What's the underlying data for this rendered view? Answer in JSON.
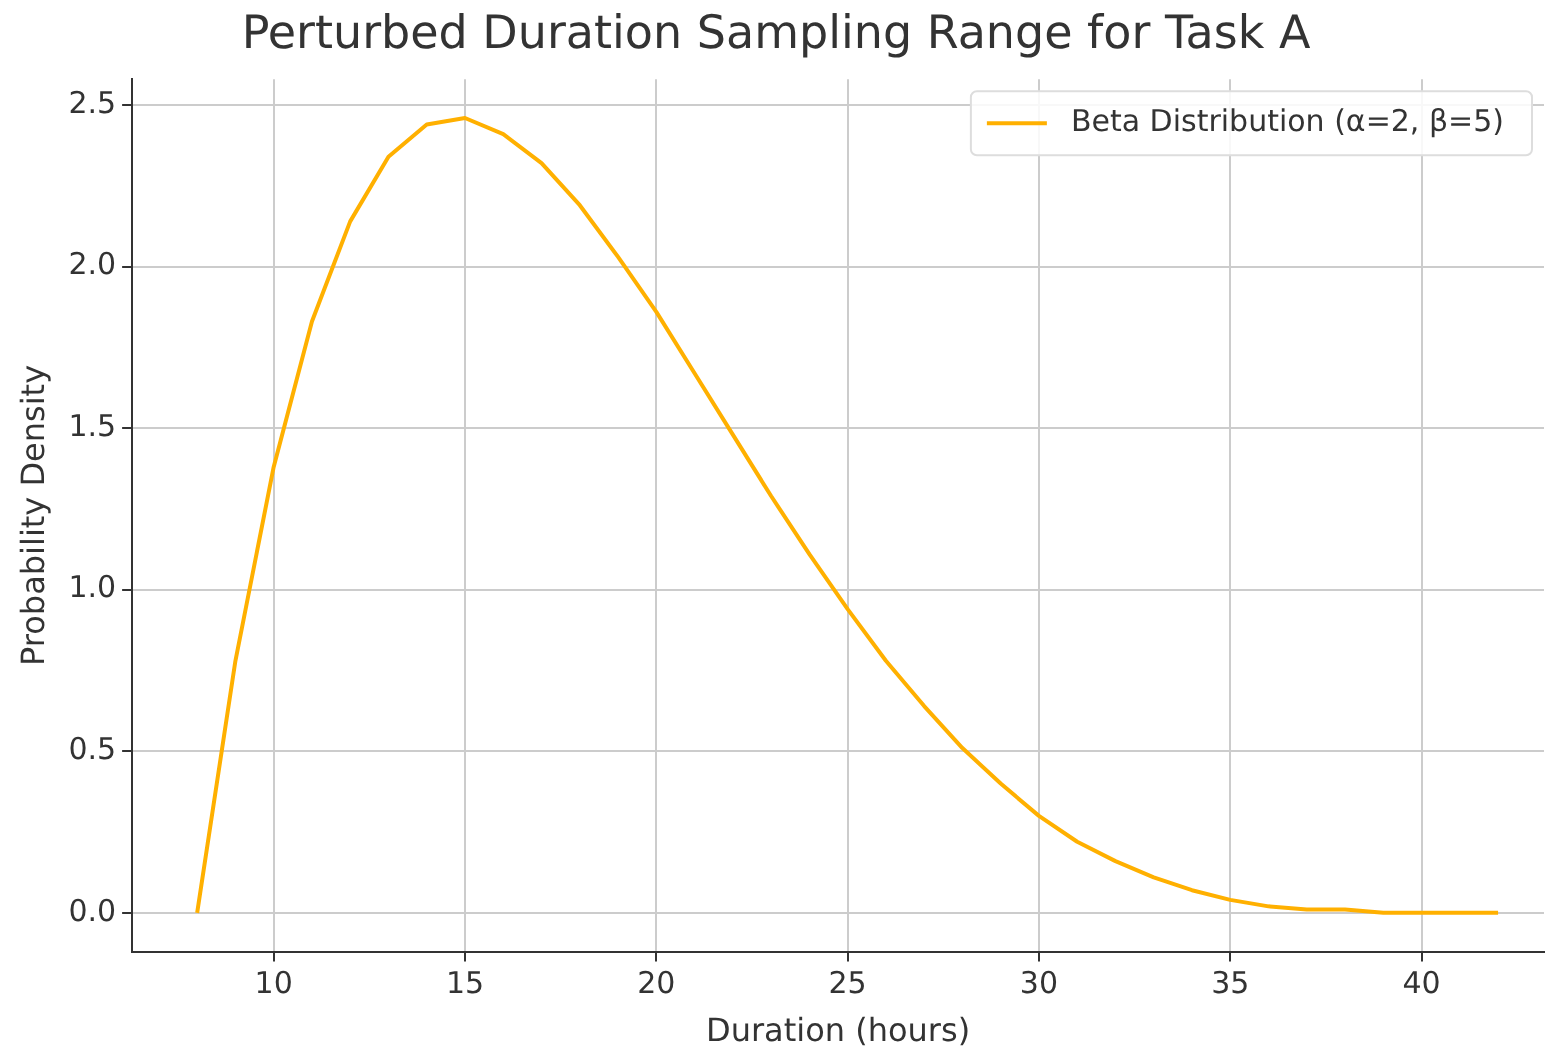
{
  "chart_data": {
    "type": "line",
    "title": "Perturbed Duration Sampling Range for Task A",
    "xlabel": "Duration (hours)",
    "ylabel": "Probability Density",
    "x": [
      8,
      9,
      10,
      11,
      12,
      13,
      14,
      15,
      16,
      17,
      18,
      19,
      20,
      21,
      22,
      23,
      24,
      25,
      26,
      27,
      28,
      29,
      30,
      31,
      32,
      33,
      34,
      35,
      36,
      37,
      38,
      39,
      40,
      41,
      42
    ],
    "series": [
      {
        "name": "Beta Distribution (α=2, β=5)",
        "color": "#ffb000",
        "values": [
          0,
          0.78,
          1.38,
          1.83,
          2.14,
          2.34,
          2.44,
          2.46,
          2.41,
          2.32,
          2.19,
          2.03,
          1.86,
          1.67,
          1.48,
          1.29,
          1.11,
          0.94,
          0.78,
          0.64,
          0.51,
          0.4,
          0.3,
          0.22,
          0.16,
          0.11,
          0.07,
          0.04,
          0.02,
          0.01,
          0.01,
          0,
          0,
          0,
          0
        ]
      }
    ],
    "xlim": [
      6.3,
      43.2
    ],
    "xticks": [
      10,
      15,
      20,
      25,
      30,
      35,
      40
    ],
    "ylim": [
      -0.12,
      2.58
    ],
    "yticks": [
      {
        "value": 0,
        "label": "0.0"
      },
      {
        "value": 0.5,
        "label": "0.5"
      },
      {
        "value": 1,
        "label": "1.0"
      },
      {
        "value": 1.5,
        "label": "1.5"
      },
      {
        "value": 2,
        "label": "2.0"
      },
      {
        "value": 2.5,
        "label": "2.5"
      }
    ],
    "grid": true,
    "legend": "top right",
    "marker": "none",
    "line_style": "solid"
  }
}
